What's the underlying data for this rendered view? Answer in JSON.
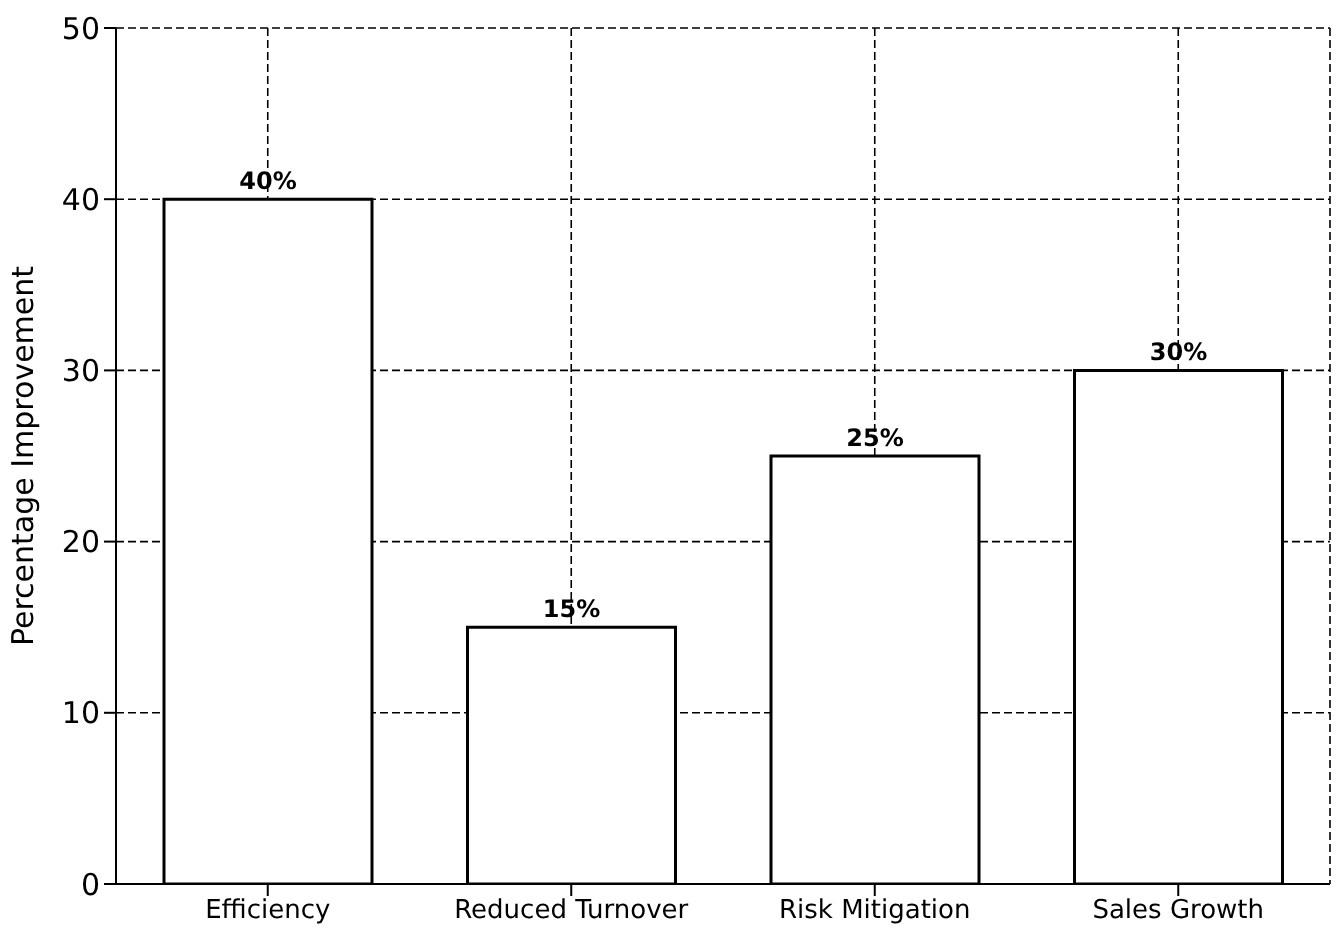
{
  "chart_data": {
    "type": "bar",
    "ylabel": "Percentage Improvement",
    "categories": [
      "Efficiency",
      "Reduced Turnover",
      "Risk Mitigation",
      "Sales Growth"
    ],
    "values": [
      40,
      15,
      25,
      30
    ],
    "value_labels": [
      "40%",
      "15%",
      "25%",
      "30%"
    ],
    "color": "#ffffff",
    "ylim": [
      0,
      50
    ],
    "yticks": [
      0,
      10,
      20,
      30,
      40,
      50
    ],
    "grid": true
  }
}
